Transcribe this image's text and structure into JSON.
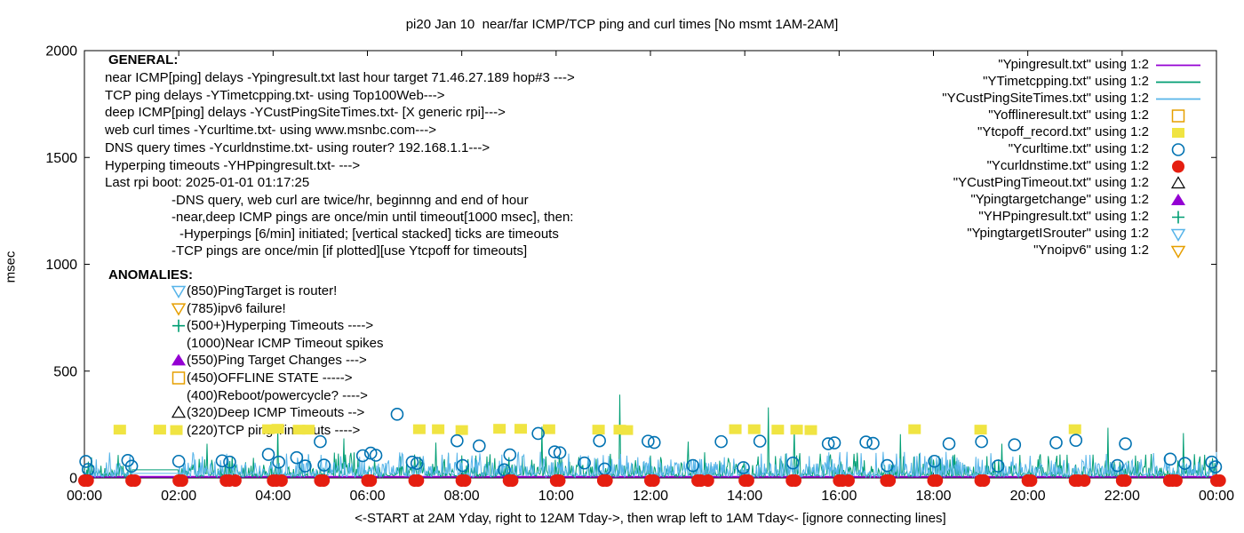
{
  "title": "pi20 Jan 10  near/far ICMP/TCP ping and curl times [No msmt 1AM-2AM]",
  "colors": {
    "purple": "#9400D3",
    "teal": "#009E73",
    "skyblue": "#56B4E9",
    "orange": "#E69F00",
    "yellow": "#F0E442",
    "blue": "#0072B2",
    "red": "#E51E10",
    "black": "#000000",
    "frame": "#000000"
  },
  "general": {
    "heading": "GENERAL:",
    "lines": [
      "near ICMP[ping] delays -Ypingresult.txt last hour target 71.46.27.189 hop#3 --->",
      "TCP ping delays -YTimetcpping.txt- using Top100Web--->",
      "deep ICMP[ping] delays -YCustPingSiteTimes.txt- [X generic rpi]--->",
      "web curl times -Ycurltime.txt- using www.msnbc.com--->",
      "DNS query times -Ycurldnstime.txt- using router? 192.168.1.1--->",
      "Hyperping timeouts -YHPpingresult.txt- --->",
      "Last rpi boot: 2025-01-01 01:17:25"
    ],
    "notes": [
      "-DNS query, web curl are twice/hr, beginnng and end of hour",
      "-near,deep ICMP pings are once/min until timeout[1000 msec], then:",
      "-Hyperpings [6/min] initiated; [vertical stacked] ticks are timeouts",
      "-TCP pings are once/min [if plotted][use Ytcpoff for timeouts]"
    ]
  },
  "anomalies": {
    "heading": "ANOMALIES:",
    "rows": [
      {
        "marker": "triangle-down-open",
        "color": "#56B4E9",
        "text": "(850)PingTarget is router!"
      },
      {
        "marker": "triangle-down-open",
        "color": "#E69F00",
        "text": "(785)ipv6 failure!"
      },
      {
        "marker": "plus",
        "color": "#009E73",
        "text": "(500+)Hyperping Timeouts ---->"
      },
      {
        "marker": null,
        "color": null,
        "text": "(1000)Near ICMP Timeout spikes"
      },
      {
        "marker": "triangle-up-filled",
        "color": "#9400D3",
        "text": "(550)Ping Target Changes --->"
      },
      {
        "marker": "square-open",
        "color": "#E69F00",
        "text": "(450)OFFLINE STATE ----->"
      },
      {
        "marker": null,
        "color": null,
        "text": "(400)Reboot/powercycle? ---->"
      },
      {
        "marker": "triangle-up-open",
        "color": "#000000",
        "text": "(320)Deep ICMP Timeouts -->"
      },
      {
        "marker": null,
        "color": null,
        "text": "(220)TCP ping Timeouts ---->"
      }
    ]
  },
  "legend": [
    {
      "label": "\"Ypingresult.txt\" using 1:2",
      "marker": "line",
      "color": "#9400D3"
    },
    {
      "label": "\"YTimetcpping.txt\" using 1:2",
      "marker": "line",
      "color": "#009E73"
    },
    {
      "label": "\"YCustPingSiteTimes.txt\" using 1:2",
      "marker": "line",
      "color": "#56B4E9"
    },
    {
      "label": "\"Yofflineresult.txt\" using 1:2",
      "marker": "square-open",
      "color": "#E69F00"
    },
    {
      "label": "\"Ytcpoff_record.txt\" using 1:2",
      "marker": "square-filled",
      "color": "#F0E442"
    },
    {
      "label": "\"Ycurltime.txt\" using 1:2",
      "marker": "circle-open",
      "color": "#0072B2"
    },
    {
      "label": "\"Ycurldnstime.txt\" using 1:2",
      "marker": "circle-filled",
      "color": "#E51E10"
    },
    {
      "label": "\"YCustPingTimeout.txt\" using 1:2",
      "marker": "triangle-up-open",
      "color": "#000000"
    },
    {
      "label": "\"Ypingtargetchange\" using 1:2",
      "marker": "triangle-up-filled",
      "color": "#9400D3"
    },
    {
      "label": "\"YHPpingresult.txt\" using 1:2",
      "marker": "plus",
      "color": "#009E73"
    },
    {
      "label": "\"YpingtargetISrouter\" using 1:2",
      "marker": "triangle-down-open",
      "color": "#56B4E9"
    },
    {
      "label": "\"Ynoipv6\" using 1:2",
      "marker": "triangle-down-open",
      "color": "#E69F00"
    }
  ],
  "chart_data": {
    "type": "line",
    "title": "pi20 Jan 10  near/far ICMP/TCP ping and curl times [No msmt 1AM-2AM]",
    "ylabel": "msec",
    "xlabel": "",
    "x_caption": "<-START at 2AM Yday, right to 12AM Tday->, then wrap left to 1AM Tday<- [ignore connecting lines]",
    "x_range_hours": [
      0,
      24
    ],
    "ylim": [
      0,
      2000
    ],
    "y_ticks": [
      0,
      500,
      1000,
      1500,
      2000
    ],
    "x_tick_labels": [
      "00:00",
      "02:00",
      "04:00",
      "06:00",
      "08:00",
      "10:00",
      "12:00",
      "14:00",
      "16:00",
      "18:00",
      "20:00",
      "22:00",
      "00:00"
    ],
    "no_measurement_gap_hours": [
      1,
      2
    ],
    "grid": false,
    "legend_position": "top-right",
    "series": [
      {
        "name": "Ypingresult.txt",
        "kind": "flat-line",
        "color": "#9400D3",
        "width": 2,
        "value_msec": 5
      },
      {
        "name": "YTimetcpping.txt",
        "kind": "noisy-line",
        "color": "#009E73",
        "width": 1,
        "seed": 1337,
        "samples_per_hour": 60,
        "base_msec": [
          4,
          20
        ],
        "mid_spike": {
          "prob": 0.34,
          "range": [
            18,
            63
          ]
        },
        "high_spike": {
          "prob": 0.09,
          "range": [
            65,
            120
          ]
        },
        "gap_flat_msec": 38,
        "tall_spikes": [
          [
            2.6,
            160
          ],
          [
            4.1,
            250
          ],
          [
            5.5,
            185
          ],
          [
            7.45,
            165
          ],
          [
            9.7,
            240
          ],
          [
            11.35,
            390
          ],
          [
            12.8,
            170
          ],
          [
            14.5,
            330
          ],
          [
            15.05,
            230
          ],
          [
            17.3,
            205
          ],
          [
            19.45,
            160
          ],
          [
            21.7,
            235
          ],
          [
            23.3,
            210
          ]
        ]
      },
      {
        "name": "YCustPingSiteTimes.txt",
        "kind": "noisy-line",
        "color": "#56B4E9",
        "width": 1,
        "seed": 7717,
        "samples_per_hour": 60,
        "base_msec": [
          4,
          24
        ],
        "mid_spike": {
          "prob": 0.4,
          "range": [
            22,
            77
          ]
        },
        "high_spike": {
          "prob": 0.07,
          "range": [
            80,
            122
          ]
        },
        "gap_flat_msec": 21,
        "tall_spikes": []
      },
      {
        "name": "Ytcpoff_record.txt",
        "kind": "scatter",
        "marker": "square-filled",
        "color": "#F0E442",
        "points_hour_msec": [
          [
            0.75,
            226
          ],
          [
            1.6,
            226
          ],
          [
            1.95,
            224
          ],
          [
            3.9,
            228
          ],
          [
            4.1,
            230
          ],
          [
            4.55,
            226
          ],
          [
            4.75,
            226
          ],
          [
            7.1,
            228
          ],
          [
            7.5,
            228
          ],
          [
            8.0,
            224
          ],
          [
            8.8,
            230
          ],
          [
            9.25,
            230
          ],
          [
            9.85,
            228
          ],
          [
            10.9,
            226
          ],
          [
            11.35,
            226
          ],
          [
            11.5,
            224
          ],
          [
            13.8,
            228
          ],
          [
            14.2,
            228
          ],
          [
            14.7,
            226
          ],
          [
            15.1,
            226
          ],
          [
            15.4,
            224
          ],
          [
            17.6,
            228
          ],
          [
            19.0,
            226
          ],
          [
            21.0,
            228
          ]
        ]
      },
      {
        "name": "Ycurltime.txt",
        "kind": "scatter",
        "marker": "circle-open",
        "color": "#0072B2",
        "points_hour_msec": [
          [
            0.03,
            77
          ],
          [
            0.08,
            40
          ],
          [
            0.92,
            82
          ],
          [
            1.0,
            55
          ],
          [
            2.0,
            78
          ],
          [
            2.92,
            80
          ],
          [
            3.08,
            74
          ],
          [
            3.9,
            110
          ],
          [
            4.12,
            74
          ],
          [
            4.5,
            95
          ],
          [
            4.68,
            56
          ],
          [
            5.0,
            170
          ],
          [
            5.08,
            60
          ],
          [
            5.9,
            104
          ],
          [
            6.07,
            116
          ],
          [
            6.18,
            106
          ],
          [
            6.63,
            298
          ],
          [
            6.95,
            74
          ],
          [
            7.05,
            68
          ],
          [
            7.9,
            174
          ],
          [
            8.02,
            58
          ],
          [
            8.37,
            150
          ],
          [
            8.9,
            38
          ],
          [
            9.02,
            108
          ],
          [
            9.62,
            208
          ],
          [
            9.97,
            122
          ],
          [
            10.08,
            118
          ],
          [
            10.6,
            70
          ],
          [
            10.92,
            174
          ],
          [
            11.03,
            42
          ],
          [
            11.95,
            172
          ],
          [
            12.08,
            166
          ],
          [
            12.9,
            58
          ],
          [
            13.5,
            170
          ],
          [
            13.97,
            48
          ],
          [
            14.32,
            172
          ],
          [
            15.02,
            70
          ],
          [
            15.77,
            160
          ],
          [
            15.9,
            164
          ],
          [
            16.57,
            168
          ],
          [
            16.72,
            162
          ],
          [
            17.02,
            58
          ],
          [
            18.02,
            78
          ],
          [
            18.33,
            160
          ],
          [
            19.02,
            170
          ],
          [
            19.37,
            56
          ],
          [
            19.72,
            155
          ],
          [
            20.6,
            165
          ],
          [
            21.02,
            176
          ],
          [
            21.9,
            58
          ],
          [
            22.07,
            160
          ],
          [
            23.02,
            88
          ],
          [
            23.33,
            68
          ],
          [
            23.9,
            74
          ],
          [
            23.98,
            52
          ]
        ]
      },
      {
        "name": "Ycurldnstime.txt",
        "kind": "scatter",
        "marker": "circle-filled",
        "color": "#E51E10",
        "hourly_dots": true,
        "hours": [
          0,
          1,
          2,
          3,
          4,
          5,
          6,
          7,
          8,
          9,
          10,
          11,
          12,
          13,
          14,
          15,
          16,
          17,
          18,
          19,
          20,
          21,
          22,
          23,
          24
        ],
        "pair_offset_hours": 0.07,
        "extra_dot_hours": [
          3.2,
          4.18,
          13.22,
          16.2,
          21.2,
          23.15
        ],
        "value_msec": 0
      }
    ]
  }
}
